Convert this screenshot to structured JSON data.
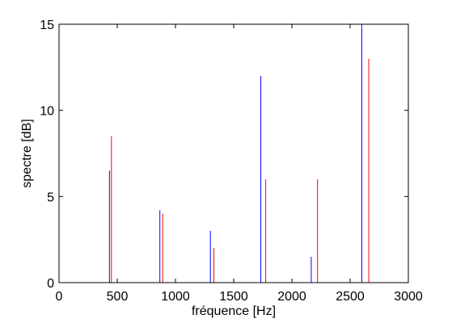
{
  "chart_data": {
    "type": "bar",
    "title": "",
    "xlabel": "fréquence [Hz]",
    "ylabel": "spectre [dB]",
    "xlim": [
      0,
      3000
    ],
    "ylim": [
      0,
      15
    ],
    "xticks": [
      0,
      500,
      1000,
      1500,
      2000,
      2500,
      3000
    ],
    "yticks": [
      0,
      5,
      10,
      15
    ],
    "grid": false,
    "legend": "none",
    "series": [
      {
        "color": "#0000ff",
        "x": [
          433,
          866,
          1300,
          1733,
          2166,
          2600
        ],
        "values": [
          6.5,
          4.2,
          3.0,
          12.0,
          1.5,
          15.0
        ]
      },
      {
        "color": "#ff0000",
        "x": [
          450,
          890,
          1330,
          1775,
          2220,
          2660
        ],
        "values": [
          8.5,
          4.0,
          2.0,
          6.0,
          6.0,
          13.0
        ]
      }
    ]
  }
}
